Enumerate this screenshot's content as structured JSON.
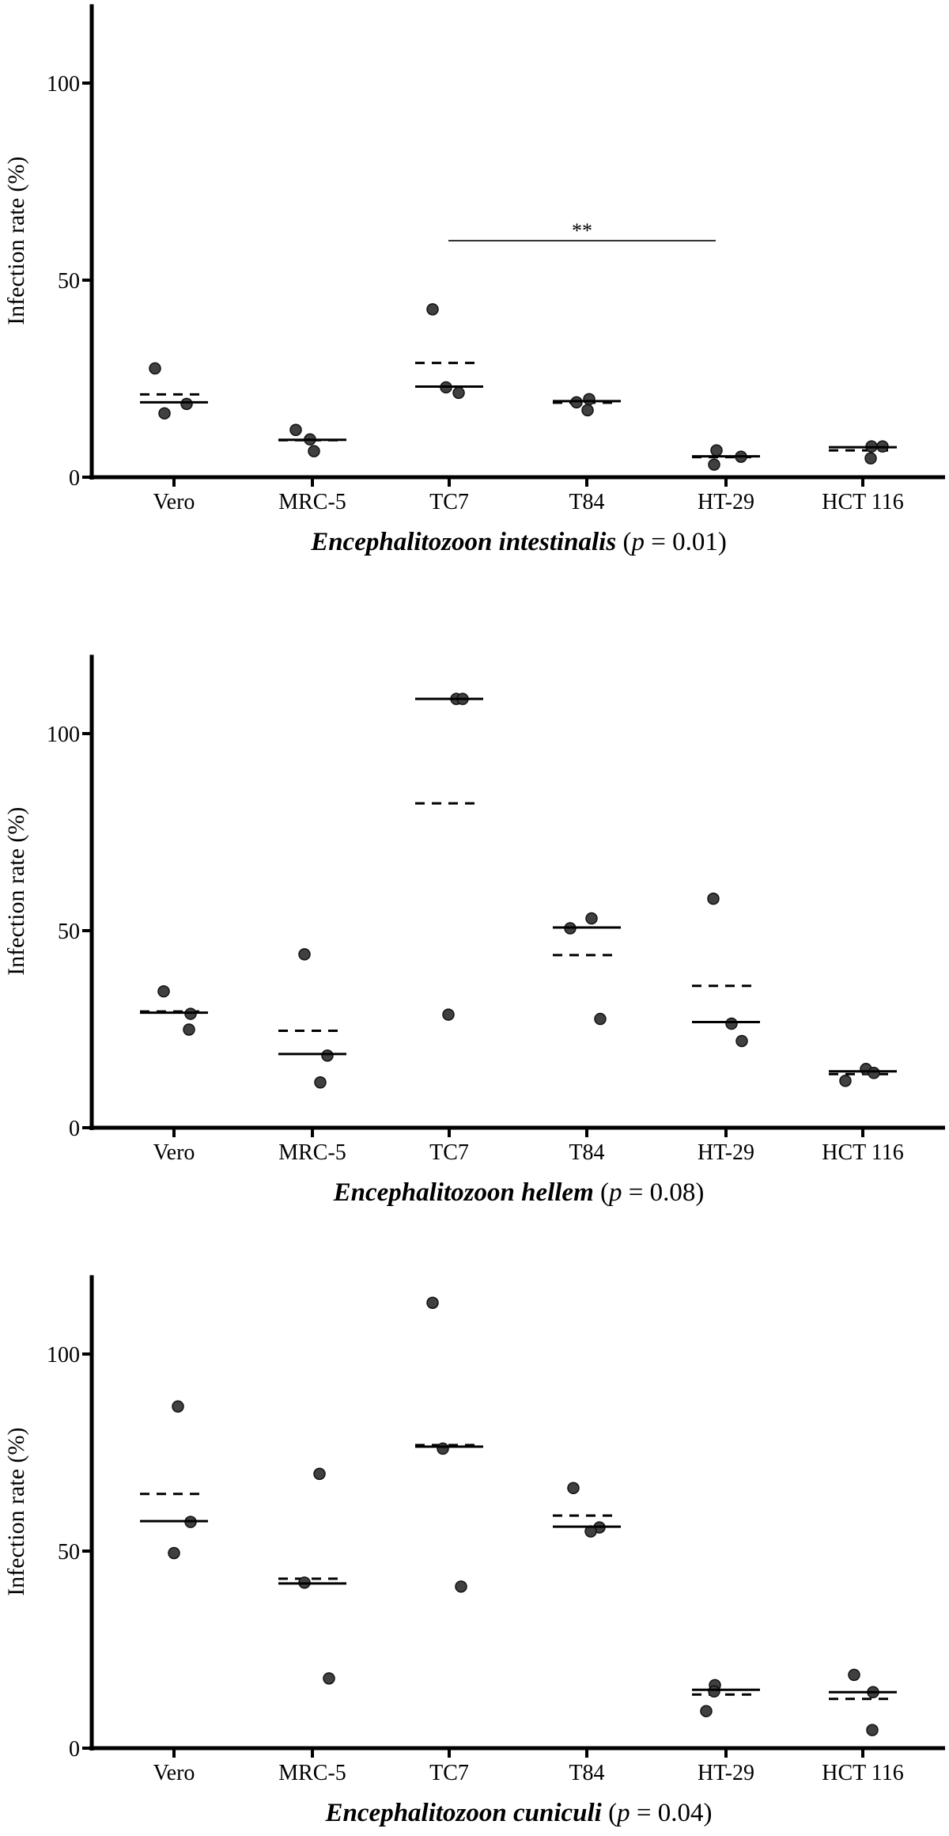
{
  "figure": {
    "y_axis_title": "Infection rate (%)",
    "y_ticks": [
      "0",
      "50",
      "100"
    ],
    "categories": [
      "Vero",
      "MRC-5",
      "TC7",
      "T84",
      "HT-29",
      "HCT 116"
    ],
    "colors": {
      "dot_fill": "#404040",
      "dot_stroke": "#111111",
      "axis": "#000000",
      "line": "#000000"
    }
  },
  "panels": [
    {
      "species": "Encephalitozoon intestinalis",
      "p_label": " (",
      "p_italic": "p",
      "p_value": " = 0.01)",
      "significance": {
        "label": "**",
        "from": "TC7",
        "to": "HT-29",
        "y": 60
      }
    },
    {
      "species": "Encephalitozoon hellem",
      "p_label": " (",
      "p_italic": "p",
      "p_value": " = 0.08)"
    },
    {
      "species": "Encephalitozoon cuniculi",
      "p_label": " (",
      "p_italic": "p",
      "p_value": " = 0.04)"
    }
  ],
  "chart_data": [
    {
      "type": "scatter",
      "title": "Encephalitozoon intestinalis (p = 0.01)",
      "xlabel": "Encephalitozoon intestinalis (p = 0.01)",
      "ylabel": "Infection rate (%)",
      "ylim": [
        0,
        120
      ],
      "yticks": [
        0,
        50,
        100
      ],
      "grid": false,
      "categories": [
        "Vero",
        "MRC-5",
        "TC7",
        "T84",
        "HT-29",
        "HCT 116"
      ],
      "points": [
        [
          27.6,
          18.6,
          16.2
        ],
        [
          12.0,
          9.6,
          6.6
        ],
        [
          42.6,
          22.8,
          21.4
        ],
        [
          19.0,
          19.8,
          17.0
        ],
        [
          6.8,
          5.2,
          3.2
        ],
        [
          7.8,
          7.8,
          4.8
        ]
      ],
      "point_offsets": [
        [
          -24,
          16,
          -12
        ],
        [
          -21,
          -3,
          2
        ],
        [
          -21,
          -4,
          12
        ],
        [
          -13,
          3,
          1
        ],
        [
          -12,
          19,
          -15
        ],
        [
          11,
          25,
          10
        ]
      ],
      "median": [
        19.0,
        9.5,
        23.0,
        19.3,
        5.3,
        7.6
      ],
      "mean": [
        21.0,
        9.4,
        29.0,
        18.9,
        5.1,
        6.8
      ],
      "annotations": [
        {
          "text": "**",
          "from": "TC7",
          "to": "HT-29",
          "y": 60
        }
      ]
    },
    {
      "type": "scatter",
      "title": "Encephalitozoon hellem (p = 0.08)",
      "xlabel": "Encephalitozoon hellem (p = 0.08)",
      "ylabel": "Infection rate (%)",
      "ylim": [
        0,
        120
      ],
      "yticks": [
        0,
        50,
        100
      ],
      "grid": false,
      "categories": [
        "Vero",
        "MRC-5",
        "TC7",
        "T84",
        "HT-29",
        "HCT 116"
      ],
      "points": [
        [
          34.6,
          28.9,
          24.9
        ],
        [
          44.0,
          18.3,
          11.5
        ],
        [
          108.8,
          108.8,
          28.7
        ],
        [
          50.6,
          53.1,
          27.6
        ],
        [
          58.1,
          26.4,
          22.0
        ],
        [
          14.9,
          13.9,
          11.9
        ]
      ],
      "point_offsets": [
        [
          -13,
          21,
          19
        ],
        [
          -10,
          19,
          10
        ],
        [
          9,
          17,
          -1
        ],
        [
          -21,
          6,
          17
        ],
        [
          -16,
          7,
          20
        ],
        [
          4,
          14,
          -22
        ]
      ],
      "median": [
        29.2,
        18.7,
        108.8,
        50.8,
        26.8,
        14.3
      ],
      "mean": [
        29.5,
        24.6,
        82.3,
        43.8,
        36.0,
        13.6
      ]
    },
    {
      "type": "scatter",
      "title": "Encephalitozoon cuniculi (p = 0.04)",
      "xlabel": "Encephalitozoon cuniculi (p = 0.04)",
      "ylabel": "Infection rate (%)",
      "ylim": [
        0,
        120
      ],
      "yticks": [
        0,
        50,
        100
      ],
      "grid": false,
      "categories": [
        "Vero",
        "MRC-5",
        "TC7",
        "T84",
        "HT-29",
        "HCT 116"
      ],
      "points": [
        [
          86.7,
          57.4,
          49.5
        ],
        [
          69.6,
          42.0,
          17.7
        ],
        [
          113.0,
          76.0,
          41.0
        ],
        [
          66.0,
          56.0,
          55.0
        ],
        [
          16.0,
          14.4,
          9.4
        ],
        [
          18.6,
          14.2,
          4.6
        ]
      ],
      "point_offsets": [
        [
          5,
          21,
          0
        ],
        [
          9,
          -10,
          21
        ],
        [
          -21,
          -8,
          15
        ],
        [
          -17,
          16,
          5
        ],
        [
          -14,
          -15,
          -25
        ],
        [
          -11,
          13,
          12
        ]
      ],
      "median": [
        57.6,
        41.8,
        76.5,
        56.2,
        14.8,
        14.2
      ],
      "mean": [
        64.5,
        43.0,
        76.9,
        59.0,
        13.6,
        12.5
      ]
    }
  ]
}
